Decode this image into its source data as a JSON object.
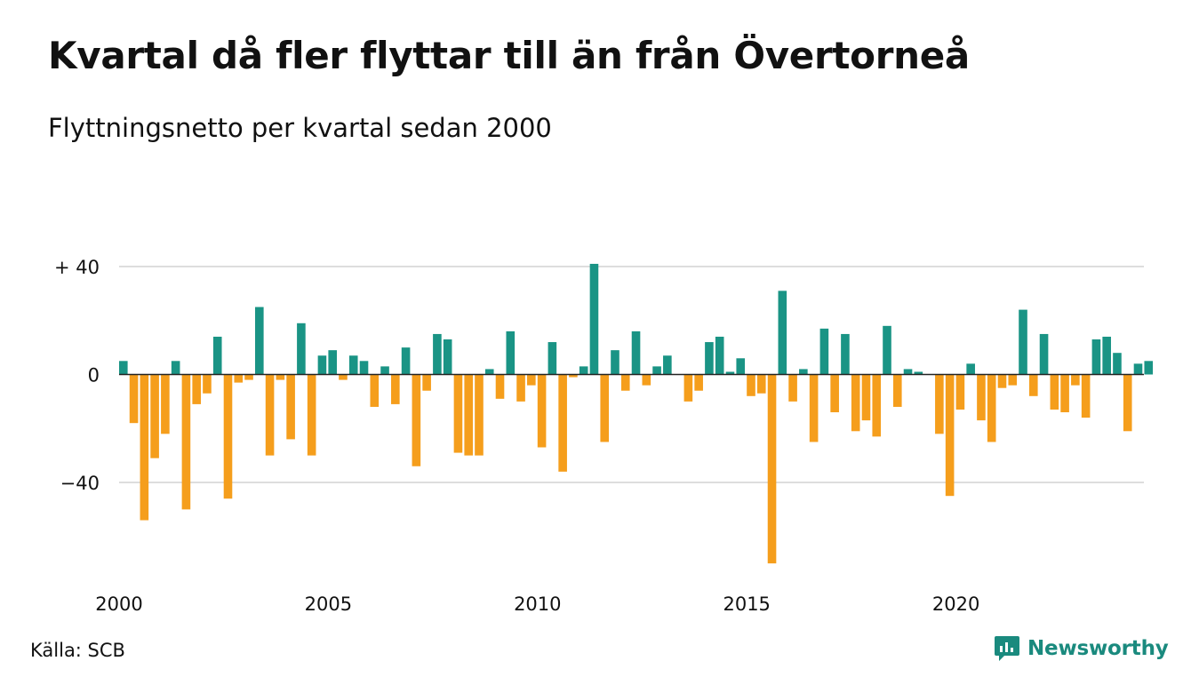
{
  "header": {
    "title": "Kvartal då fler flyttar till än från Övertorneå",
    "subtitle": "Flyttningsnetto per kvartal sedan 2000"
  },
  "footer": {
    "source": "Källa: SCB",
    "brand": "Newsworthy"
  },
  "colors": {
    "positive": "#1a9485",
    "negative": "#f59e1c",
    "grid": "#dddddd",
    "brand": "#1a8a7e"
  },
  "chart_data": {
    "type": "bar",
    "xlabel": "",
    "ylabel": "",
    "ylim": [
      -70,
      42
    ],
    "yticks": [
      {
        "value": 40,
        "label": "+ 40"
      },
      {
        "value": 0,
        "label": "0"
      },
      {
        "value": -40,
        "label": "−40"
      }
    ],
    "xticks": [
      {
        "value": 2000,
        "label": "2000"
      },
      {
        "value": 2005,
        "label": "2005"
      },
      {
        "value": 2010,
        "label": "2010"
      },
      {
        "value": 2015,
        "label": "2015"
      },
      {
        "value": 2020,
        "label": "2020"
      }
    ],
    "grid": true,
    "start": "2000-Q1",
    "values": [
      5,
      -18,
      -54,
      -31,
      -22,
      5,
      -50,
      -11,
      -7,
      14,
      -46,
      -3,
      -2,
      25,
      -30,
      -2,
      -24,
      19,
      -30,
      7,
      9,
      -2,
      7,
      5,
      -12,
      3,
      -11,
      10,
      -34,
      -6,
      15,
      13,
      -29,
      -30,
      -30,
      2,
      -9,
      16,
      -10,
      -4,
      -27,
      12,
      -36,
      -1,
      3,
      41,
      -25,
      9,
      -6,
      16,
      -4,
      3,
      7,
      0,
      -10,
      -6,
      12,
      14,
      1,
      6,
      -8,
      -7,
      -70,
      31,
      -10,
      2,
      -25,
      17,
      -14,
      15,
      -21,
      -17,
      -23,
      18,
      -12,
      2,
      1,
      0,
      -22,
      -45,
      -13,
      4,
      -17,
      -25,
      -5,
      -4,
      24,
      -8,
      15,
      -13,
      -14,
      -4,
      -16,
      13,
      14,
      8,
      -21,
      4,
      5
    ]
  }
}
